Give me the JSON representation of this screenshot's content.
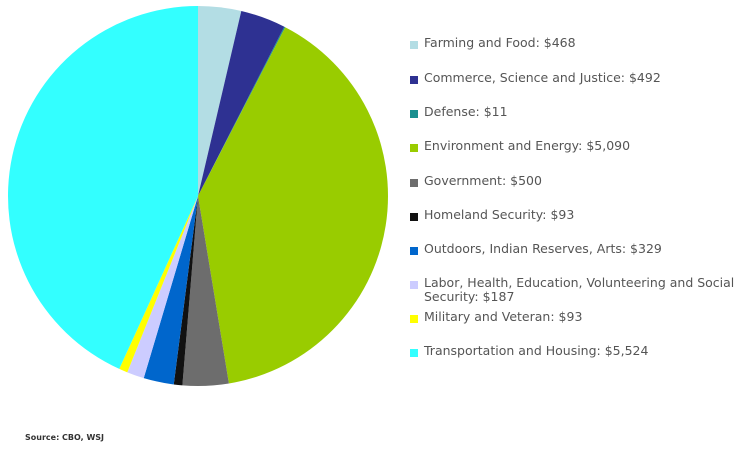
{
  "chart_data": {
    "type": "pie",
    "currency_prefix": "$",
    "slices": [
      {
        "label": "Farming and Food",
        "value": 468,
        "color": "#b3dde4"
      },
      {
        "label": "Commerce, Science and Justice",
        "value": 492,
        "color": "#2e3192"
      },
      {
        "label": "Defense",
        "value": 11,
        "color": "#1a8f8f"
      },
      {
        "label": "Environment and Energy",
        "value": 5090,
        "color": "#99cc00"
      },
      {
        "label": "Government",
        "value": 500,
        "color": "#6d6d6d"
      },
      {
        "label": "Homeland Security",
        "value": 93,
        "color": "#111111"
      },
      {
        "label": "Outdoors, Indian Reserves, Arts",
        "value": 329,
        "color": "#0066cc"
      },
      {
        "label": "Labor, Health, Education, Volunteering and Social Security",
        "value": 187,
        "color": "#ccccff"
      },
      {
        "label": "Military and Veteran",
        "value": 93,
        "color": "#ffff00"
      },
      {
        "label": "Transportation and Housing",
        "value": 5524,
        "color": "#33ffff"
      }
    ],
    "legend_position": "right"
  },
  "source": "Source: CBO, WSJ"
}
